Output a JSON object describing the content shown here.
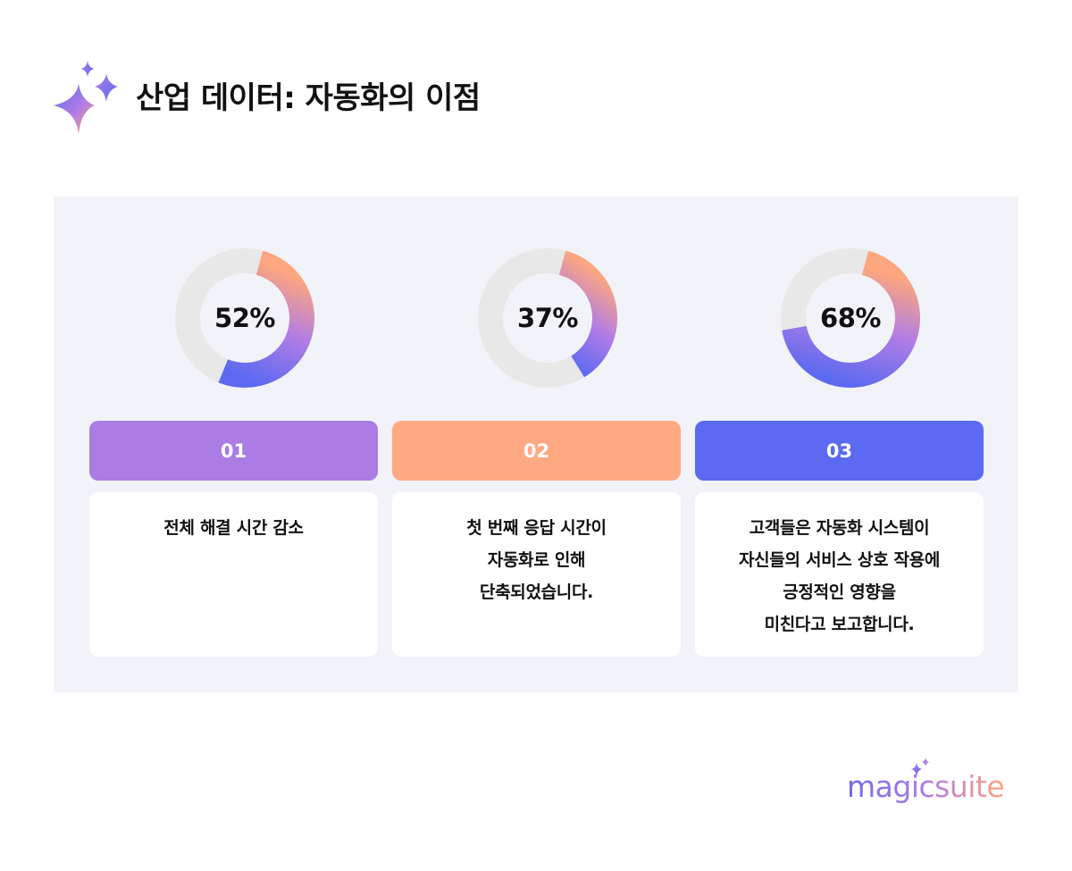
{
  "header": {
    "title": "산업 데이터: 자동화의 이점",
    "icon": "sparkle-icon"
  },
  "colors": {
    "gradient_start": "#fda67f",
    "gradient_mid": "#b07ce6",
    "gradient_end": "#5b6af0",
    "track": "#e8e8e8",
    "panel_bg": "#f2f3f8",
    "badge_1": "#ab7ce4",
    "badge_2": "#ffa983",
    "badge_3": "#5b6af0"
  },
  "chart_data": [
    {
      "type": "pie",
      "subtype": "donut",
      "values": [
        52
      ],
      "max": 100,
      "label": "52%"
    },
    {
      "type": "pie",
      "subtype": "donut",
      "values": [
        37
      ],
      "max": 100,
      "label": "37%"
    },
    {
      "type": "pie",
      "subtype": "donut",
      "values": [
        68
      ],
      "max": 100,
      "label": "68%"
    }
  ],
  "items": [
    {
      "number": "01",
      "lines": [
        "전체 해결 시간 감소"
      ]
    },
    {
      "number": "02",
      "lines": [
        "첫 번째 응답 시간이",
        "자동화로 인해",
        "단축되었습니다."
      ]
    },
    {
      "number": "03",
      "lines": [
        "고객들은 자동화 시스템이",
        "자신들의 서비스 상호 작용에",
        "긍정적인 영향을",
        "미친다고 보고합니다."
      ]
    }
  ],
  "brand": {
    "name": "magicsuite",
    "icon": "sparkle-icon"
  }
}
